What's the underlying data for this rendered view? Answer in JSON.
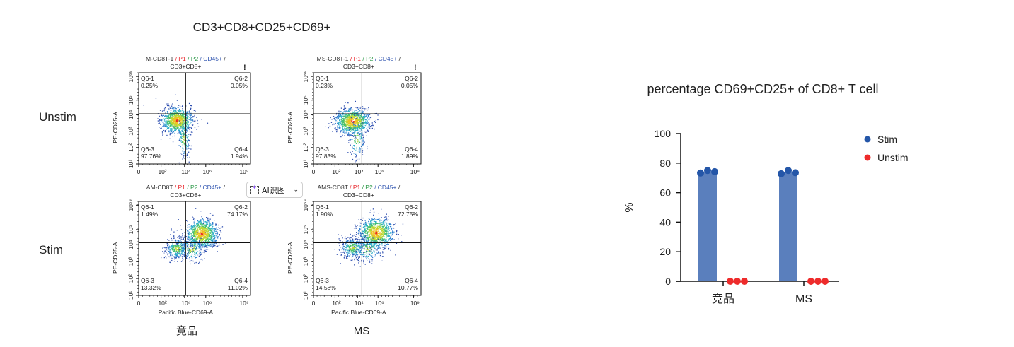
{
  "figure_title": "CD3+CD8+CD25+CD69+",
  "row_labels": [
    "Unstim",
    "Stim"
  ],
  "column_labels": [
    "竞品",
    "MS"
  ],
  "flow_plots": [
    {
      "gate_path": [
        "M-CD8T-1",
        "P1",
        "P2",
        "CD45+",
        "CD3+CD8+"
      ],
      "quadrants": {
        "Q6-1": "0.25%",
        "Q6-2": "0.05%",
        "Q6-3": "97.76%",
        "Q6-4": "1.94%"
      },
      "warning": "!"
    },
    {
      "gate_path": [
        "MS-CD8T-1",
        "P1",
        "P2",
        "CD45+",
        "CD3+CD8+"
      ],
      "quadrants": {
        "Q6-1": "0.23%",
        "Q6-2": "0.05%",
        "Q6-3": "97.83%",
        "Q6-4": "1.89%"
      },
      "warning": "!"
    },
    {
      "gate_path": [
        "AM-CD8T",
        "P1",
        "P2",
        "CD45+",
        "CD3+CD8+"
      ],
      "quadrants": {
        "Q6-1": "1.49%",
        "Q6-2": "74.17%",
        "Q6-3": "13.32%",
        "Q6-4": "11.02%"
      }
    },
    {
      "gate_path": [
        "AMS-CD8T",
        "P1",
        "P2",
        "CD45+",
        "CD3+CD8+"
      ],
      "quadrants": {
        "Q6-1": "1.90%",
        "Q6-2": "72.75%",
        "Q6-3": "14.58%",
        "Q6-4": "10.77%"
      }
    }
  ],
  "flow_axes": {
    "xlabel": "Pacific Blue-CD69-A",
    "ylabel": "PE-CD25-A",
    "xticks": [
      "0",
      "10²",
      "10⁴",
      "10⁶",
      "10⁹"
    ],
    "yticks": [
      "10¹",
      "10²",
      "10³",
      "10⁴",
      "10⁵",
      "10⁶⁹"
    ]
  },
  "overlay_button": {
    "label": "AI识图",
    "icon": "ai-scan-icon"
  },
  "colors": {
    "bar": "#5a7fbd",
    "stim": "#2456a8",
    "unstim": "#ee2b2b",
    "gate_red": "#e8262b",
    "gate_green": "#2f9a4a",
    "gate_blue": "#3055b0"
  },
  "chart_data": {
    "type": "bar",
    "title": "percentage CD69+CD25+ of CD8+ T cell",
    "categories": [
      "竞品",
      "MS"
    ],
    "ylabel": "%",
    "xlabel": "",
    "ylim": [
      0,
      100
    ],
    "yticks": [
      0,
      20,
      40,
      60,
      80,
      100
    ],
    "legend_position": "top-right",
    "series": [
      {
        "name": "Stim",
        "values": [
          74.2,
          73.8
        ],
        "points": [
          [
            73.3,
            75.0,
            74.2
          ],
          [
            72.8,
            75.0,
            73.5
          ]
        ]
      },
      {
        "name": "Unstim",
        "values": [
          0.0,
          0.0
        ],
        "points": [
          [
            0.0,
            0.0,
            0.0
          ],
          [
            0.0,
            0.0,
            0.0
          ]
        ]
      }
    ]
  }
}
